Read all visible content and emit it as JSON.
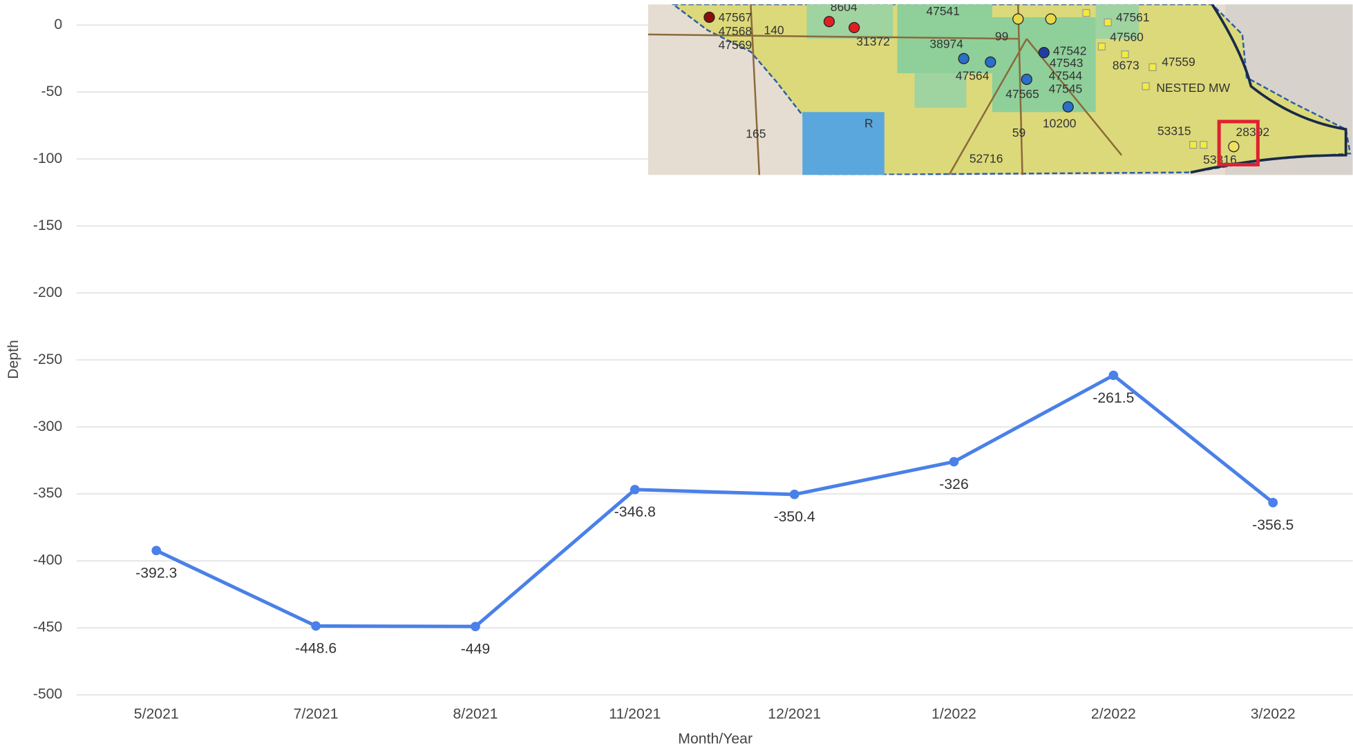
{
  "chart_data": {
    "type": "line",
    "x_label": "Month/Year",
    "y_label": "Depth",
    "categories": [
      "5/2021",
      "7/2021",
      "8/2021",
      "11/2021",
      "12/2021",
      "1/2022",
      "2/2022",
      "3/2022"
    ],
    "series": [
      {
        "name": "Depth",
        "color": "#4a80e8",
        "values": [
          -392.3,
          -448.6,
          -449,
          -346.8,
          -350.4,
          -326,
          -261.5,
          -356.5
        ]
      }
    ],
    "ylim": [
      -500,
      0
    ],
    "yticks": [
      0,
      -50,
      -100,
      -150,
      -200,
      -250,
      -300,
      -350,
      -400,
      -450,
      -500
    ],
    "grid": true
  },
  "map_inset": {
    "labels": [
      "8604",
      "47567",
      "47568",
      "47569",
      "140",
      "31372",
      "47541",
      "38974",
      "99",
      "47561",
      "47560",
      "47542",
      "47543",
      "47544",
      "47545",
      "47564",
      "47565",
      "8673",
      "47559",
      "NESTED MW",
      "10200",
      "165",
      "59",
      "R",
      "53315",
      "28392",
      "52716",
      "53316"
    ]
  }
}
